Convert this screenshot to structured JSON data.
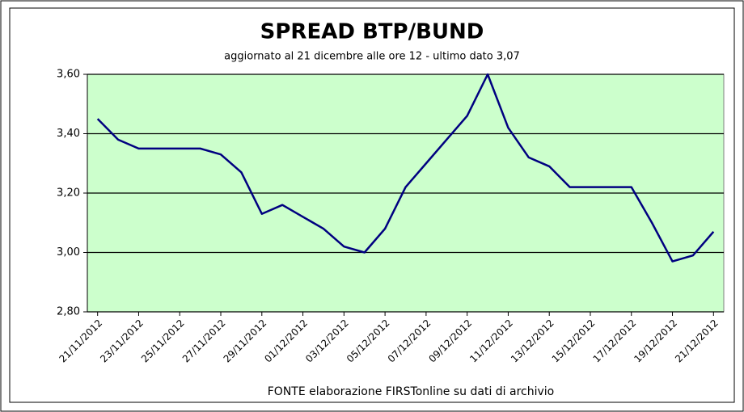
{
  "chart_data": {
    "type": "line",
    "title": "SPREAD  BTP/BUND",
    "subtitle": "aggiornato al 21  dicembre alle ore 12 - ultimo dato 3,07",
    "source": "FONTE elaborazione FIRSTonline su dati di archivio",
    "categories": [
      "21/11/2012",
      null,
      "23/11/2012",
      null,
      "25/11/2012",
      null,
      "27/11/2012",
      null,
      "29/11/2012",
      null,
      "01/12/2012",
      null,
      "03/12/2012",
      null,
      "05/12/2012",
      null,
      "07/12/2012",
      null,
      "09/12/2012",
      null,
      "11/12/2012",
      null,
      "13/12/2012",
      null,
      "15/12/2012",
      null,
      "17/12/2012",
      null,
      "19/12/2012",
      null,
      "21/12/2012"
    ],
    "series": [
      {
        "color": "#000080",
        "values": [
          3.45,
          3.38,
          3.35,
          3.35,
          3.35,
          3.35,
          3.33,
          3.27,
          3.13,
          3.16,
          3.12,
          3.08,
          3.02,
          3.0,
          3.08,
          3.22,
          3.3,
          3.38,
          3.46,
          3.6,
          3.42,
          3.32,
          3.29,
          3.22,
          3.22,
          3.22,
          3.22,
          3.1,
          2.97,
          2.99,
          3.07
        ]
      }
    ],
    "ylim": [
      2.8,
      3.6
    ],
    "yticks": [
      {
        "value": 2.8,
        "label": "2,80"
      },
      {
        "value": 3.0,
        "label": "3,00"
      },
      {
        "value": 3.2,
        "label": "3,20"
      },
      {
        "value": 3.4,
        "label": "3,40"
      },
      {
        "value": 3.6,
        "label": "3,60"
      }
    ],
    "grid": true,
    "plot_background": "#ccffcc"
  }
}
